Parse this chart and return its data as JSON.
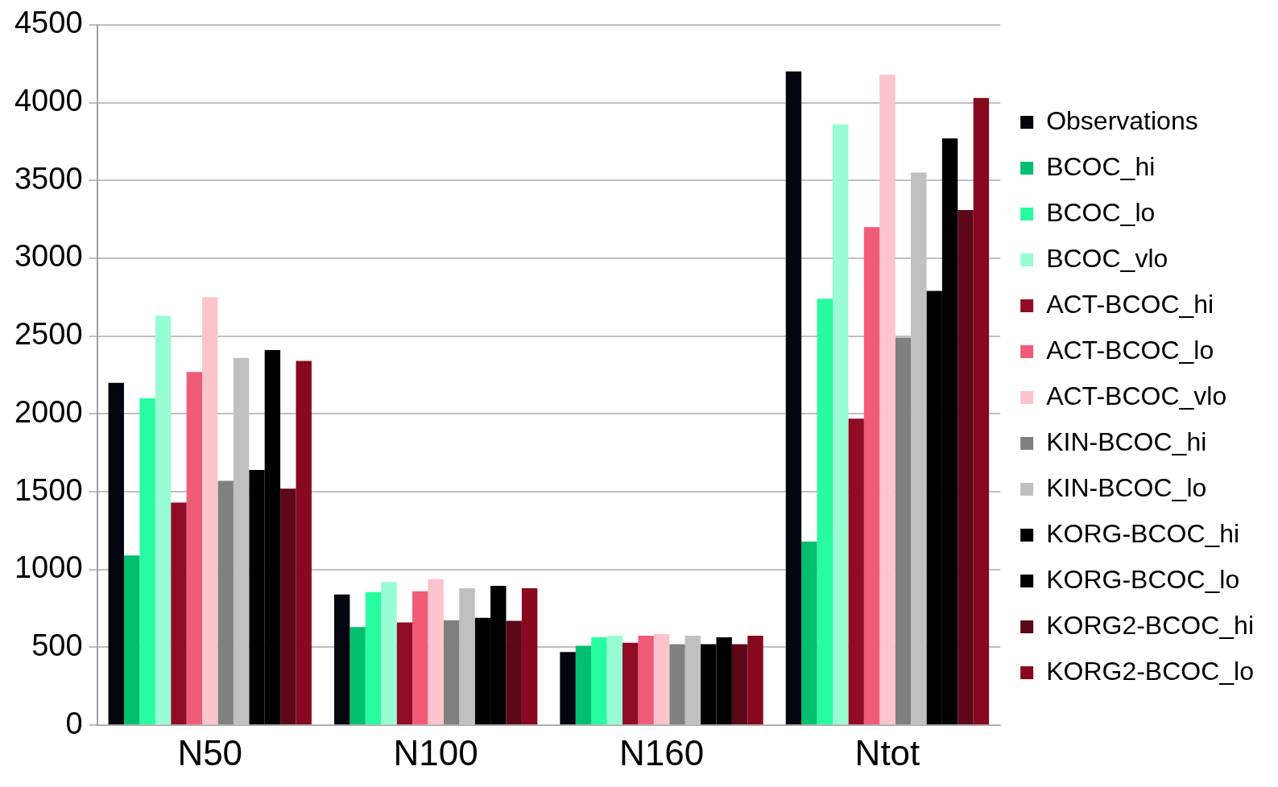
{
  "chart_data": {
    "type": "bar",
    "categories": [
      "N50",
      "N100",
      "N160",
      "Ntot"
    ],
    "ylim": [
      0,
      4500
    ],
    "yticks": [
      0,
      500,
      1000,
      1500,
      2000,
      2500,
      3000,
      3500,
      4000,
      4500
    ],
    "grid": "y",
    "legend": "right",
    "series": [
      {
        "name": "Observations",
        "color": "#05050f",
        "values": [
          2200,
          840,
          470,
          4200
        ]
      },
      {
        "name": "BCOC_hi",
        "color": "#00c070",
        "values": [
          1090,
          630,
          510,
          1180
        ]
      },
      {
        "name": "BCOC_lo",
        "color": "#28fca0",
        "values": [
          2100,
          855,
          565,
          2740
        ]
      },
      {
        "name": "BCOC_vlo",
        "color": "#98fcd4",
        "values": [
          2630,
          920,
          575,
          3860
        ]
      },
      {
        "name": "ACT-BCOC_hi",
        "color": "#900c24",
        "values": [
          1430,
          660,
          530,
          1970
        ]
      },
      {
        "name": "ACT-BCOC_lo",
        "color": "#f05c78",
        "values": [
          2270,
          860,
          575,
          3200
        ]
      },
      {
        "name": "ACT-BCOC_vlo",
        "color": "#fcc4cc",
        "values": [
          2750,
          940,
          585,
          4180
        ]
      },
      {
        "name": "KIN-BCOC_hi",
        "color": "#808080",
        "values": [
          1570,
          675,
          520,
          2490
        ]
      },
      {
        "name": "KIN-BCOC_lo",
        "color": "#c0c0c0",
        "values": [
          2360,
          880,
          575,
          3550
        ]
      },
      {
        "name": "KORG-BCOC_hi",
        "color": "#000000",
        "values": [
          1640,
          690,
          520,
          2790
        ]
      },
      {
        "name": "KORG-BCOC_lo",
        "color": "#000000",
        "values": [
          2410,
          895,
          565,
          3770
        ]
      },
      {
        "name": "KORG2-BCOC_hi",
        "color": "#5c0818",
        "values": [
          1520,
          670,
          520,
          3310
        ]
      },
      {
        "name": "KORG2-BCOC_lo",
        "color": "#880820",
        "values": [
          2340,
          880,
          575,
          4030
        ]
      }
    ]
  }
}
